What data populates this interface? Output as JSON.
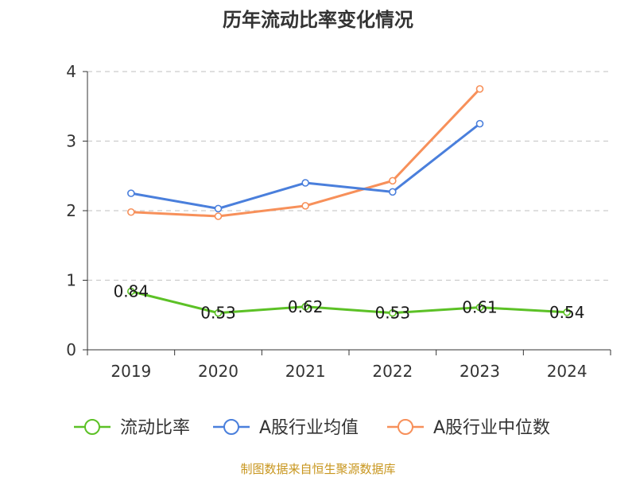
{
  "chart_data": {
    "type": "line",
    "title": "历年流动比率变化情况",
    "categories": [
      "2019",
      "2020",
      "2021",
      "2022",
      "2023",
      "2024"
    ],
    "ylim": [
      0,
      4
    ],
    "yticks": [
      0,
      1,
      2,
      3,
      4
    ],
    "grid": true,
    "legend_position": "bottom",
    "series": [
      {
        "name": "流动比率",
        "color": "#5cc126",
        "values": [
          0.84,
          0.53,
          0.62,
          0.53,
          0.61,
          0.54
        ],
        "labels": [
          "0.84",
          "0.53",
          "0.62",
          "0.53",
          "0.61",
          "0.54"
        ]
      },
      {
        "name": "A股行业均值",
        "color": "#4a7fdc",
        "values": [
          2.25,
          2.03,
          2.4,
          2.27,
          3.25,
          null
        ]
      },
      {
        "name": "A股行业中位数",
        "color": "#f7905a",
        "values": [
          1.98,
          1.92,
          2.07,
          2.43,
          3.75,
          null
        ]
      }
    ],
    "source": "制图数据来自恒生聚源数据库"
  }
}
